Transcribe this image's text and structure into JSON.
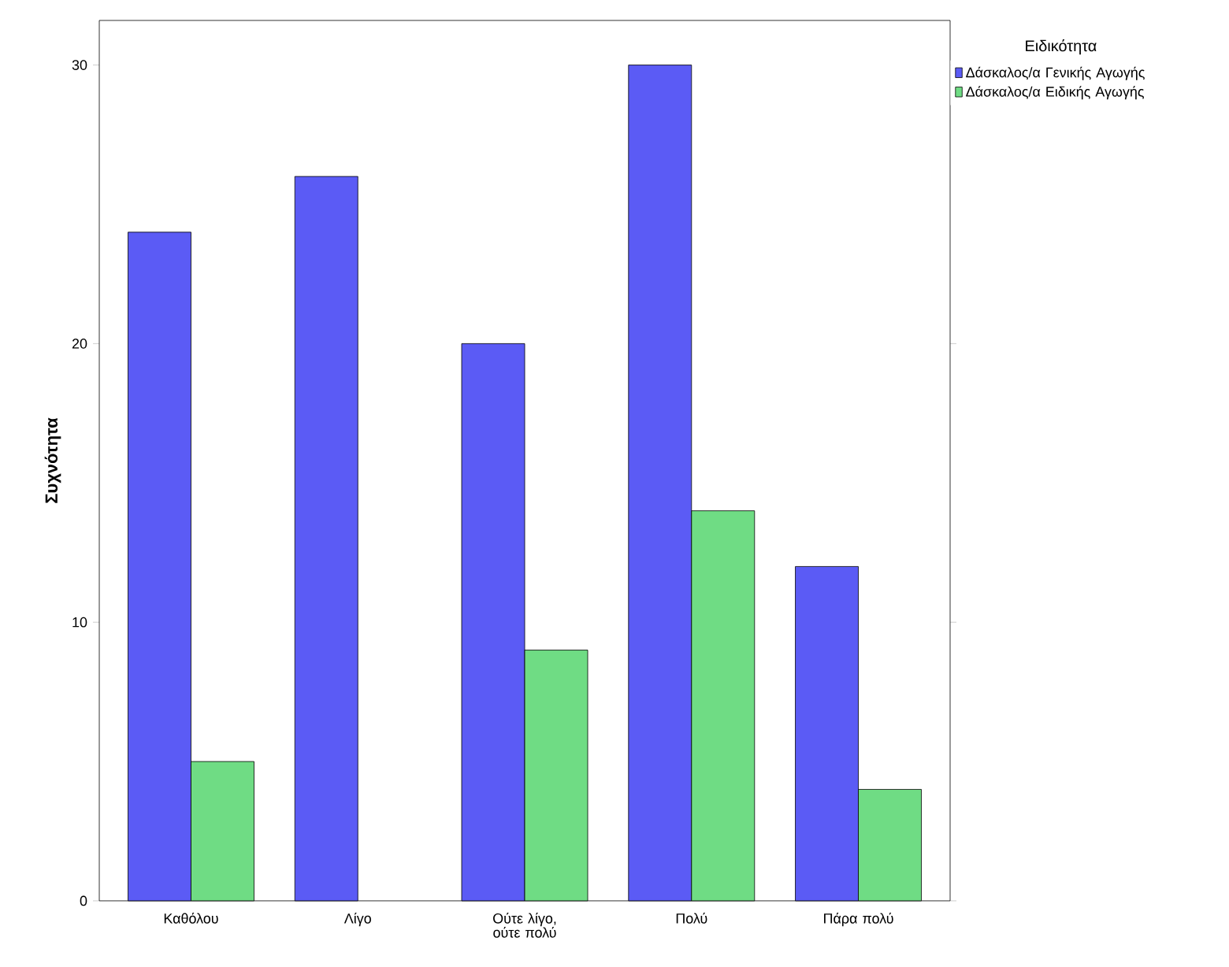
{
  "chart_data": {
    "type": "bar",
    "ylabel": "Συχνότητα",
    "legend_title": "Ειδικότητα",
    "categories": [
      "Καθόλου",
      "Λίγο",
      "Ούτε λίγο, ούτε πολύ",
      "Πολύ",
      "Πάρα πολύ"
    ],
    "series": [
      {
        "name": "Δάσκαλος/α Γενικής Αγωγής",
        "color": "#5b5bf5",
        "values": [
          24,
          26,
          20,
          30,
          12
        ]
      },
      {
        "name": "Δάσκαλος/α Ειδικής Αγωγής",
        "color": "#6fdc84",
        "values": [
          5,
          null,
          9,
          14,
          4
        ]
      }
    ],
    "ylim": [
      0,
      31.6
    ],
    "yticks": [
      0,
      10,
      20,
      30
    ],
    "grid": false,
    "legend": "top right"
  }
}
